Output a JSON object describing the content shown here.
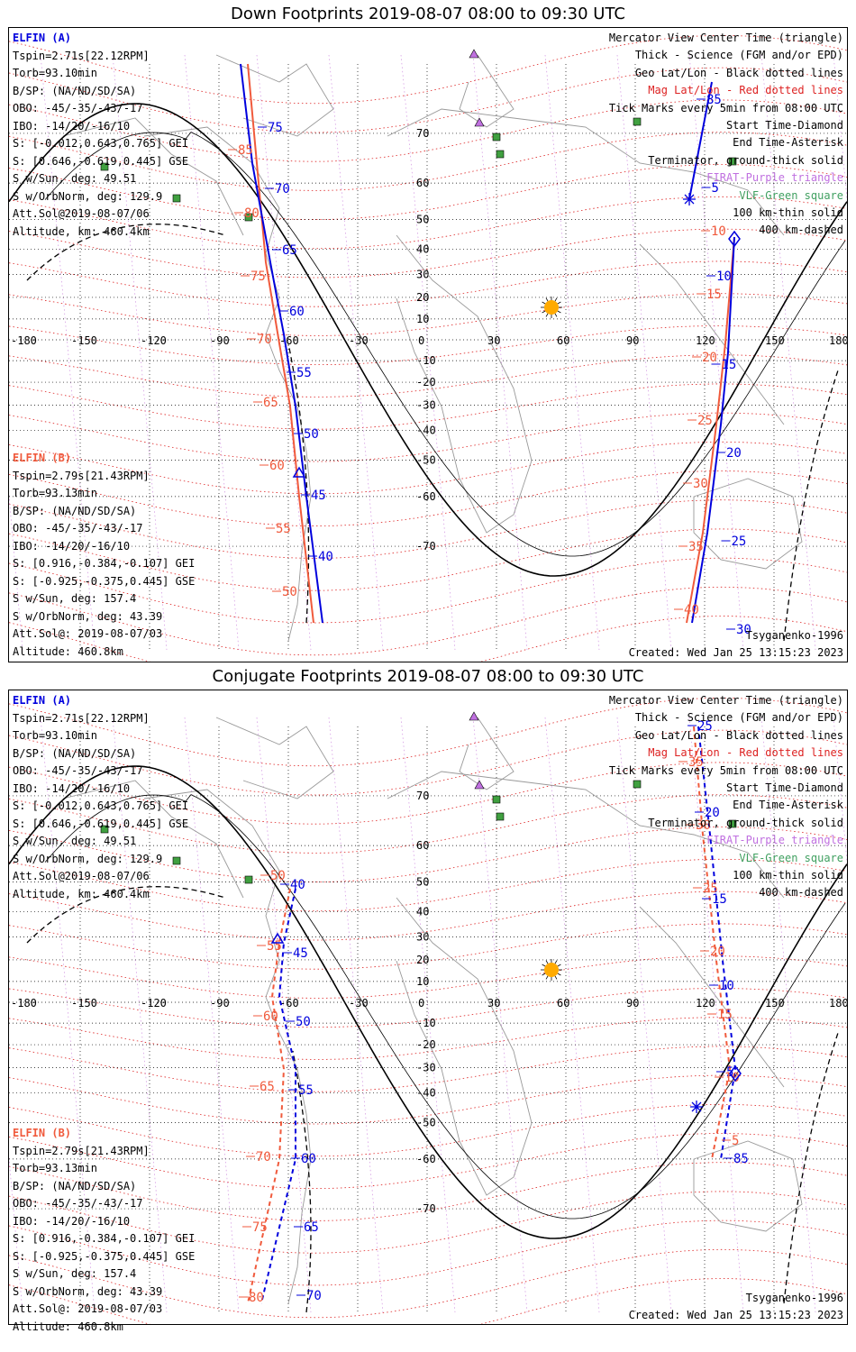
{
  "panels": [
    {
      "title": "Down Footprints 2019-08-07 08:00 to 09:30 UTC",
      "elfin_a": {
        "name": "ELFIN (A)",
        "lines": [
          "Tspin=2.71s[22.12RPM]",
          "Torb=93.10min",
          "B/SP: (NA/ND/SD/SA)",
          "OBO: -45/-35/-43/-17",
          "IBO: -14/20/-16/10",
          "S: [-0.012,0.643,0.765] GEI",
          "S: [0.646,-0.619,0.445] GSE",
          "S w/Sun, deg: 49.51",
          "S w/OrbNorm, deg: 129.9",
          "Att.Sol@2019-08-07/06",
          "Altitude, km: 460.4km"
        ]
      },
      "elfin_b": {
        "name": "ELFIN (B)",
        "lines": [
          "Tspin=2.79s[21.43RPM]",
          "Torb=93.13min",
          "B/SP: (NA/ND/SD/SA)",
          "OBO: -45/-35/-43/-17",
          "IBO: -14/20/-16/10",
          "S: [0.916,-0.384,-0.107] GEI",
          "S: [-0.925,-0.375,0.445] GSE",
          "S w/Sun, deg: 157.4",
          "S w/OrbNorm, deg: 43.39",
          "Att.Sol@: 2019-08-07/03",
          "Altitude: 460.8km"
        ]
      },
      "legend": [
        {
          "text": "Mercator View Center Time (triangle)",
          "color": "#000000"
        },
        {
          "text": "Thick - Science (FGM and/or EPD)",
          "color": "#000000"
        },
        {
          "text": "Geo Lat/Lon - Black dotted lines",
          "color": "#000000"
        },
        {
          "text": "Mag Lat/Lon - Red dotted lines",
          "color": "#dd2222"
        },
        {
          "text": "Tick Marks every 5min from 08:00 UTC",
          "color": "#000000"
        },
        {
          "text": "Start Time-Diamond",
          "color": "#000000"
        },
        {
          "text": "End Time-Asterisk",
          "color": "#000000"
        },
        {
          "text": "Terminator, ground-thick solid",
          "color": "#000000"
        },
        {
          "text": "FIRAT-Purple triangle",
          "color": "#c070e0"
        },
        {
          "text": "VLF-Green square",
          "color": "#40a060"
        },
        {
          "text": "100 km-thin solid",
          "color": "#000000"
        },
        {
          "text": "400 km-dashed",
          "color": "#000000"
        }
      ],
      "model": "Tsyganenko-1996",
      "created": "Created: Wed Jan 25 13:15:23 2023",
      "west_labels_blue": [
        "75",
        "70",
        "65",
        "60",
        "55",
        "50",
        "45",
        "40"
      ],
      "west_labels_red": [
        "85",
        "80",
        "75",
        "70",
        "65",
        "60",
        "55",
        "50"
      ],
      "east_labels_blue": [
        "85",
        "5",
        "10",
        "15",
        "20",
        "25",
        "30"
      ],
      "east_labels_red": [
        "10",
        "15",
        "20",
        "25",
        "30",
        "35",
        "40"
      ]
    },
    {
      "title": "Conjugate Footprints 2019-08-07 08:00 to 09:30 UTC",
      "elfin_a": {
        "name": "ELFIN (A)",
        "lines": [
          "Tspin=2.71s[22.12RPM]",
          "Torb=93.10min",
          "B/SP: (NA/ND/SD/SA)",
          "OBO: -45/-35/-43/-17",
          "IBO: -14/20/-16/10",
          "S: [-0.012,0.643,0.765] GEI",
          "S: [0.646,-0.619,0.445] GSE",
          "S w/Sun, deg: 49.51",
          "S w/OrbNorm, deg: 129.9",
          "Att.Sol@2019-08-07/06",
          "Altitude, km: 460.4km"
        ]
      },
      "elfin_b": {
        "name": "ELFIN (B)",
        "lines": [
          "Tspin=2.79s[21.43RPM]",
          "Torb=93.13min",
          "B/SP: (NA/ND/SD/SA)",
          "OBO: -45/-35/-43/-17",
          "IBO: -14/20/-16/10",
          "S: [0.916,-0.384,-0.107] GEI",
          "S: [-0.925,-0.375,0.445] GSE",
          "S w/Sun, deg: 157.4",
          "S w/OrbNorm, deg: 43.39",
          "Att.Sol@: 2019-08-07/03",
          "Altitude: 460.8km"
        ]
      },
      "legend": [
        {
          "text": "Mercator View Center Time (triangle)",
          "color": "#000000"
        },
        {
          "text": "Thick - Science (FGM and/or EPD)",
          "color": "#000000"
        },
        {
          "text": "Geo Lat/Lon - Black dotted lines",
          "color": "#000000"
        },
        {
          "text": "Mag Lat/Lon - Red dotted lines",
          "color": "#dd2222"
        },
        {
          "text": "Tick Marks every 5min from 08:00 UTC",
          "color": "#000000"
        },
        {
          "text": "Start Time-Diamond",
          "color": "#000000"
        },
        {
          "text": "End Time-Asterisk",
          "color": "#000000"
        },
        {
          "text": "Terminator, ground-thick solid",
          "color": "#000000"
        },
        {
          "text": "FIRAT-Purple triangle",
          "color": "#c070e0"
        },
        {
          "text": "VLF-Green square",
          "color": "#40a060"
        },
        {
          "text": "100 km-thin solid",
          "color": "#000000"
        },
        {
          "text": "400 km-dashed",
          "color": "#000000"
        }
      ],
      "model": "Tsyganenko-1996",
      "created": "Created: Wed Jan 25 13:15:23 2023",
      "west_labels_blue": [
        "40",
        "45",
        "50",
        "55",
        "60",
        "65",
        "70"
      ],
      "west_labels_red": [
        "50",
        "55",
        "60",
        "65",
        "70",
        "75",
        "80"
      ],
      "east_labels_blue": [
        "25",
        "20",
        "15",
        "10",
        "5",
        "85"
      ],
      "east_labels_red": [
        "35",
        "30",
        "25",
        "20",
        "15",
        "10",
        "5"
      ]
    }
  ],
  "axes": {
    "lon_labels": [
      "-180",
      "-150",
      "-120",
      "-90",
      "-60",
      "-30",
      "0",
      "30",
      "60",
      "90",
      "120",
      "150",
      "180"
    ],
    "lat_labels": [
      "70",
      "60",
      "50",
      "40",
      "30",
      "20",
      "10",
      "-10",
      "-20",
      "-30",
      "-40",
      "-50",
      "-60",
      "-70"
    ]
  },
  "colors": {
    "elfin_a": "#0000dd",
    "elfin_b": "#f05a3c",
    "mag_grid": "#dd2222",
    "sun": "#ffaa00",
    "vlf": "#40a040",
    "firat": "#c070e0"
  }
}
